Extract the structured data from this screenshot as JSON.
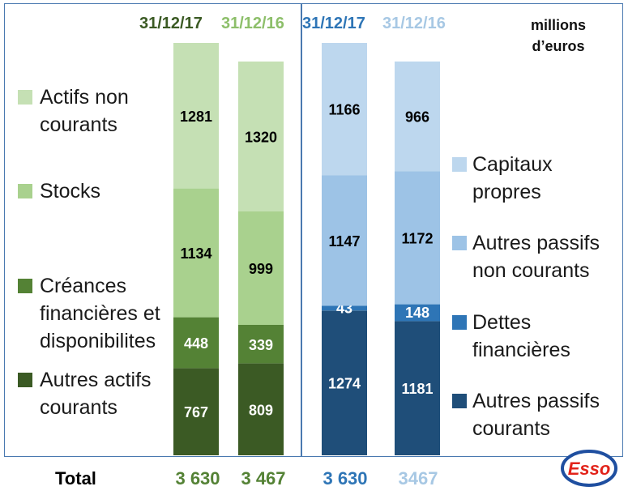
{
  "unit_label": "millions d’euros",
  "total_label": "Total",
  "colors": {
    "green_dark": "#3b5a24",
    "green_mid": "#548235",
    "green_light": "#a9d18e",
    "green_pale": "#c5e0b4",
    "blue_dark": "#1f4e79",
    "blue_mid": "#2e75b6",
    "blue_light": "#9dc3e6",
    "blue_pale": "#bdd7ee",
    "hdr_green_dark": "#3b5a24",
    "hdr_green_light": "#8dbf6a",
    "hdr_blue_dark": "#2e75b6",
    "hdr_blue_light": "#a7c8e4",
    "total_blue_light": "#a7c8e4"
  },
  "chart_data": {
    "type": "bar",
    "stacked": true,
    "grid": false,
    "title": "",
    "xlabel": "",
    "ylabel": "",
    "panels": [
      {
        "side": "actif",
        "categories": [
          "31/12/17",
          "31/12/16"
        ],
        "series": [
          {
            "name": "Autres actifs courants",
            "values": [
              767,
              809
            ]
          },
          {
            "name": "Créances financières et disponibilites",
            "values": [
              448,
              339
            ]
          },
          {
            "name": "Stocks",
            "values": [
              1134,
              999
            ]
          },
          {
            "name": "Actifs non courants",
            "values": [
              1281,
              1320
            ]
          }
        ],
        "totals": [
          "3 630",
          "3 467"
        ],
        "legend_position": "left"
      },
      {
        "side": "passif",
        "categories": [
          "31/12/17",
          "31/12/16"
        ],
        "series": [
          {
            "name": "Autres passifs courants",
            "values": [
              1274,
              1181
            ]
          },
          {
            "name": "Dettes financières",
            "values": [
              43,
              148
            ]
          },
          {
            "name": "Autres passifs non courants",
            "values": [
              1147,
              1172
            ]
          },
          {
            "name": "Capitaux propres",
            "values": [
              1166,
              966
            ]
          }
        ],
        "totals": [
          "3 630",
          "3467"
        ],
        "legend_position": "right"
      }
    ]
  },
  "legend_left": [
    {
      "lines": [
        "Actifs non",
        "courants"
      ],
      "color": "green_pale"
    },
    {
      "lines": [
        "Stocks"
      ],
      "color": "green_light"
    },
    {
      "lines": [
        "Créances",
        "financières et",
        "disponibilites"
      ],
      "color": "green_mid"
    },
    {
      "lines": [
        "Autres actifs",
        "courants"
      ],
      "color": "green_dark"
    }
  ],
  "legend_right": [
    {
      "lines": [
        "Capitaux",
        "propres"
      ],
      "color": "blue_pale"
    },
    {
      "lines": [
        "Autres passifs",
        "non courants"
      ],
      "color": "blue_light"
    },
    {
      "lines": [
        "Dettes",
        "financières"
      ],
      "color": "blue_mid"
    },
    {
      "lines": [
        "Autres passifs",
        "courants"
      ],
      "color": "blue_dark"
    }
  ],
  "logo": {
    "text": "Esso"
  }
}
